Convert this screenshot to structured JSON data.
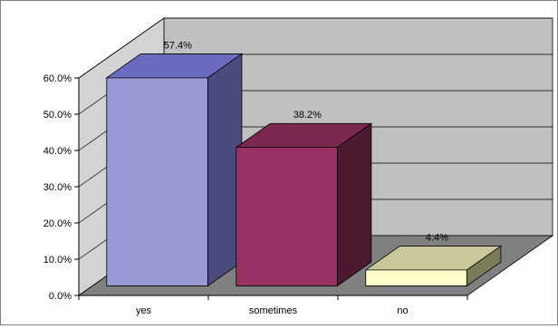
{
  "chart_data": {
    "type": "bar",
    "categories": [
      "yes",
      "sometimes",
      "no"
    ],
    "values": [
      57.4,
      38.2,
      4.4
    ],
    "data_labels": [
      "57.4%",
      "38.2%",
      "4.4%"
    ],
    "y_ticks": [
      "0.0%",
      "10.0%",
      "20.0%",
      "30.0%",
      "40.0%",
      "50.0%",
      "60.0%"
    ],
    "ylim": [
      0,
      60
    ],
    "y_unit": "%",
    "grid": true,
    "legend": "none",
    "style": "3d-column",
    "colors": {
      "bars": [
        {
          "front": "#9999D4",
          "side": "#4B4B7E",
          "top": "#6B6BBF"
        },
        {
          "front": "#993366",
          "side": "#4C1930",
          "top": "#7A2850"
        },
        {
          "front": "#FFFFCC",
          "side": "#7B7B5A",
          "top": "#C8C89B"
        }
      ],
      "wall": "#C0C0C0",
      "side_wall": "#D3D3D3",
      "floor": "#808080",
      "gridline": "#000000"
    }
  }
}
